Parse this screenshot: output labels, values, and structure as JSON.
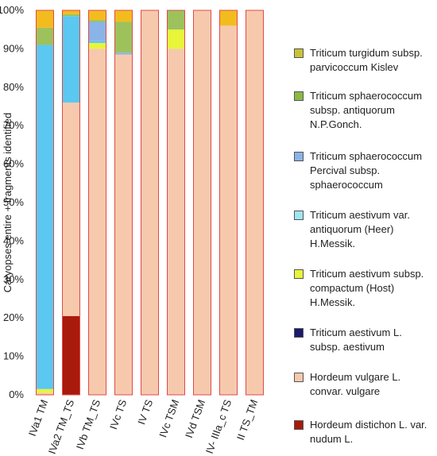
{
  "chart_data": {
    "type": "bar",
    "stacked": true,
    "ylabel": "Caryopses entire + fragments identified",
    "y_ticks": [
      "0%",
      "10%",
      "20%",
      "30%",
      "40%",
      "50%",
      "60%",
      "70%",
      "80%",
      "90%",
      "100%"
    ],
    "ylim": [
      0,
      100
    ],
    "grid": false,
    "legend_position": "right",
    "categories": [
      "IVa1 TM",
      "IVa2 TM_TS",
      "IVb TM_TS",
      "IVc TS",
      "IV TS",
      "IVc TSM",
      "IVd TSM",
      "IV- IIIa_c TS",
      "II TS_TM"
    ],
    "series": [
      {
        "name": "Hordeum distichon L. var. nudum L.",
        "color": "#a81a0c",
        "values": [
          0,
          20.5,
          0,
          0,
          0,
          0,
          0,
          0,
          0
        ]
      },
      {
        "name": "Hordeum vulgare L. convar. vulgare",
        "color": "#f6c9ad",
        "values": [
          0.5,
          55.5,
          90,
          88.5,
          100,
          90,
          100,
          96,
          100
        ]
      },
      {
        "name": "Triticum aestivum L. subsp. aestivum",
        "color": "#1a1a6e",
        "values": [
          0,
          0,
          0,
          0,
          0,
          0,
          0,
          0,
          0
        ]
      },
      {
        "name": "Triticum aestivum subsp. compactum (Host) H.Messik.",
        "color": "#e8f53a",
        "values": [
          1,
          0,
          1.5,
          0,
          0,
          5,
          0,
          0,
          0
        ]
      },
      {
        "name": "Triticum aestivum var. antiquorum (Heer) H.Messik.",
        "color": "#5ac8f0",
        "values": [
          89.5,
          22.5,
          0.5,
          0,
          0,
          0,
          0,
          0,
          0
        ]
      },
      {
        "name": "Triticum sphaerococcum Percival subsp. sphaerococcum",
        "color": "#8ab4e8",
        "values": [
          0,
          0,
          5,
          0.5,
          0,
          0,
          0,
          0,
          0
        ]
      },
      {
        "name": "Triticum sphaerococcum subsp. antiquorum N.P.Gonch.",
        "color": "#9dc25c",
        "values": [
          4.5,
          0.5,
          0.5,
          8,
          0,
          5,
          0,
          0,
          0
        ]
      },
      {
        "name": "Triticum turgidum subsp. parvicoccum Kislev",
        "color": "#f3bc1e",
        "values": [
          4.5,
          1,
          2.5,
          3,
          0,
          0,
          0,
          4,
          0
        ]
      }
    ],
    "legend_order": [
      {
        "text": "Triticum turgidum subsp.\nparvicoccum Kislev",
        "color": "#c8c23a"
      },
      {
        "text": "Triticum sphaerococcum\nsubsp. antiquorum\nN.P.Gonch.",
        "color": "#8cb844"
      },
      {
        "text": "Triticum sphaerococcum\nPercival subsp.\nsphaerococcum",
        "color": "#8ab4e8"
      },
      {
        "text": "Triticum aestivum var.\nantiquorum (Heer)\nH.Messik.",
        "color": "#9ee6f0"
      },
      {
        "text": "Triticum aestivum subsp.\ncompactum (Host)\nH.Messik.",
        "color": "#e8f53a"
      },
      {
        "text": "Triticum aestivum L.\nsubsp. aestivum",
        "color": "#1a1a6e"
      },
      {
        "text": "Hordeum vulgare L.\nconvar. vulgare",
        "color": "#f6c9ad"
      },
      {
        "text": "Hordeum distichon L. var.\nnudum L.",
        "color": "#a81a0c"
      }
    ]
  }
}
